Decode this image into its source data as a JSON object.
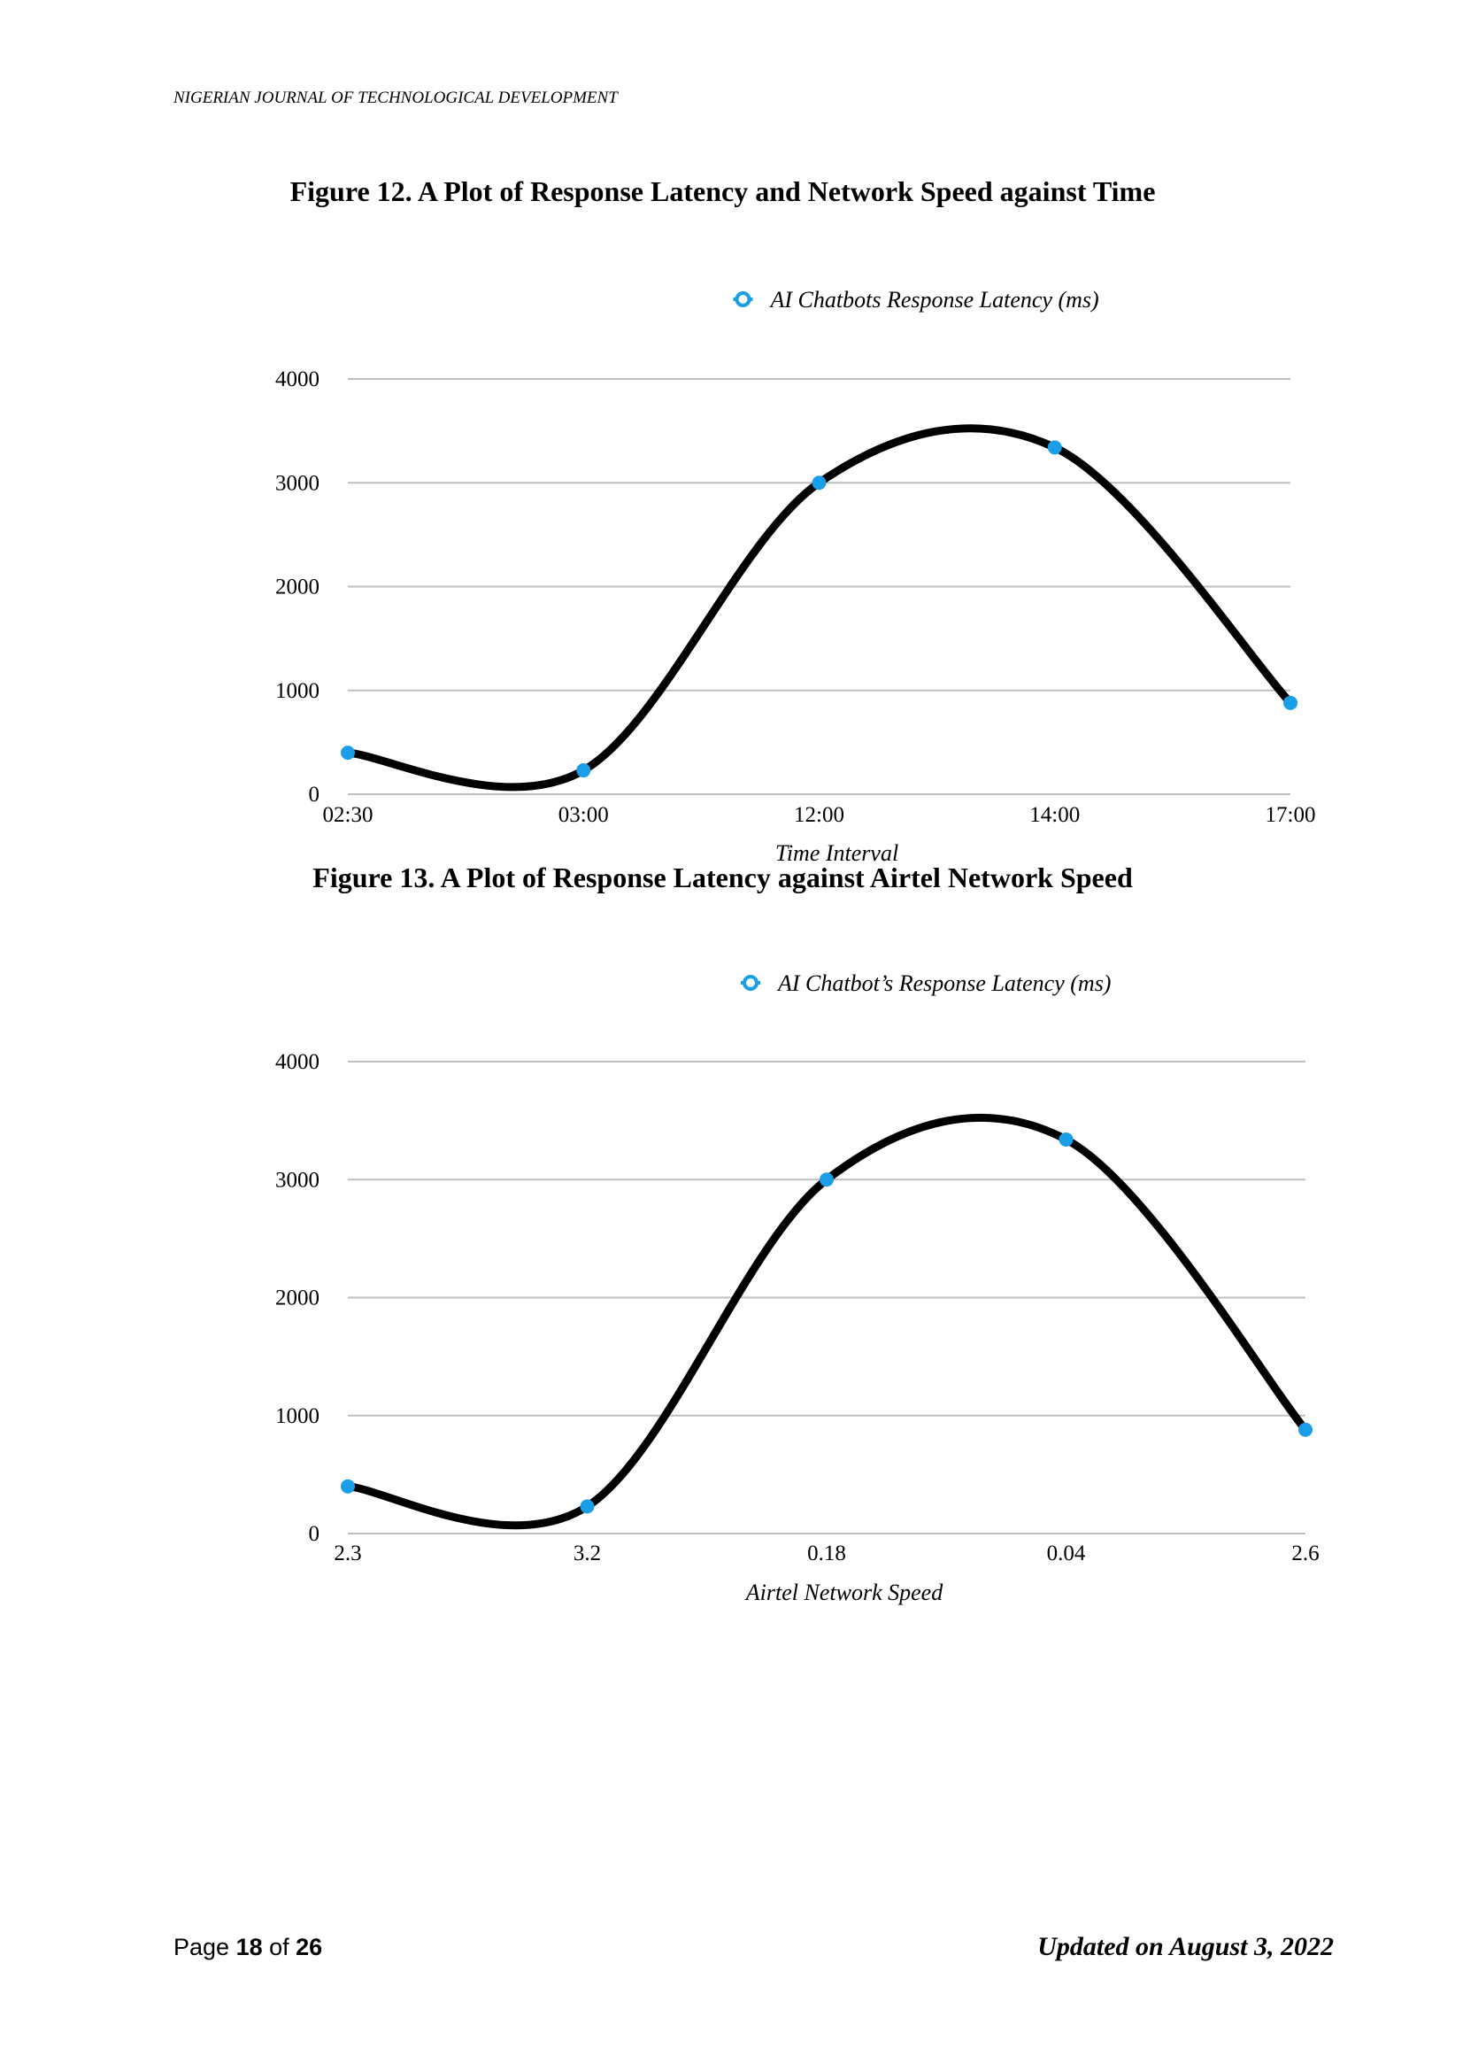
{
  "header": {
    "journal": "NIGERIAN JOURNAL OF TECHNOLOGICAL DEVELOPMENT"
  },
  "figures": {
    "fig12_caption": "Figure 12. A Plot of Response Latency and Network Speed against Time",
    "fig13_caption": "Figure 13. A Plot of Response Latency against Airtel Network Speed"
  },
  "colors": {
    "line": "#000000",
    "marker": "#1a9ee8",
    "grid": "#bfbfbf"
  },
  "chart_data": [
    {
      "type": "line",
      "title": "",
      "legend": "AI Chatbots Response Latency (ms)",
      "legend_position": "top",
      "xlabel": "Time Interval",
      "ylabel": "",
      "categories": [
        "02:30",
        "03:00",
        "12:00",
        "14:00",
        "17:00"
      ],
      "series": [
        {
          "name": "AI Chatbots Response Latency (ms)",
          "values": [
            400,
            230,
            3000,
            3340,
            880
          ]
        }
      ],
      "ylim": [
        0,
        4000
      ],
      "yticks": [
        0,
        1000,
        2000,
        3000,
        4000
      ],
      "grid": true,
      "smooth": true
    },
    {
      "type": "line",
      "title": "",
      "legend": "AI Chatbot’s Response Latency (ms)",
      "legend_position": "top",
      "xlabel": "Airtel Network Speed",
      "ylabel": "",
      "categories": [
        "2.3",
        "3.2",
        "0.18",
        "0.04",
        "2.6"
      ],
      "series": [
        {
          "name": "AI Chatbot’s Response Latency (ms)",
          "values": [
            400,
            230,
            3000,
            3340,
            880
          ]
        }
      ],
      "ylim": [
        0,
        4000
      ],
      "yticks": [
        0,
        1000,
        2000,
        3000,
        4000
      ],
      "grid": true,
      "smooth": true
    }
  ],
  "footer": {
    "page_prefix": "Page ",
    "page_number": "18",
    "page_of": " of ",
    "page_total": "26",
    "updated": "Updated on August 3, 2022"
  }
}
